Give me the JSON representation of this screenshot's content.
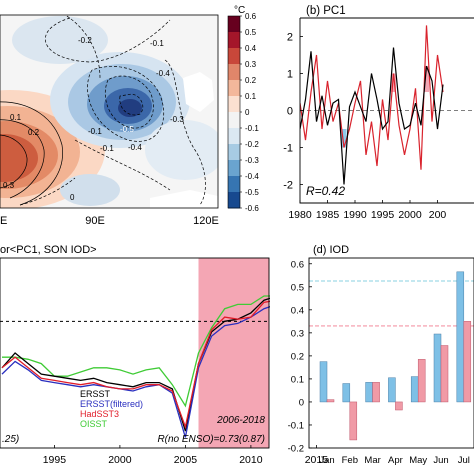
{
  "panel_a": {
    "colorbar_unit": "°C",
    "colorbar_ticks": [
      "0.6",
      "0.5",
      "0.4",
      "0.3",
      "0.2",
      "0.1",
      "0",
      "-0.1",
      "-0.2",
      "-0.3",
      "-0.4",
      "-0.5",
      "-0.6"
    ],
    "x_ticks": [
      "E",
      "90E",
      "120E"
    ],
    "contour_labels": [
      "-0.2",
      "-0.1",
      "-0.4",
      "-0.5",
      "-0.3",
      "0.1",
      "0.2",
      "0.3",
      "-0.1",
      "-0.1",
      "-0.4",
      "0"
    ]
  },
  "chart_data": [
    {
      "type": "line",
      "title": "(b) PC1",
      "x": [
        1980,
        1981,
        1982,
        1983,
        1984,
        1985,
        1986,
        1987,
        1988,
        1989,
        1990,
        1991,
        1992,
        1993,
        1994,
        1995,
        1996,
        1997,
        1998,
        1999,
        2000,
        2001,
        2002,
        2003,
        2004,
        2005,
        2006
      ],
      "series": [
        {
          "values": [
            -0.5,
            0.3,
            1.6,
            -0.3,
            0.4,
            -0.4,
            0.2,
            0.3,
            -2.0,
            0.1,
            0.5,
            0.1,
            -0.3,
            1.0,
            0.3,
            -0.5,
            -0.3,
            1.7,
            0.2,
            -0.5,
            -0.4,
            0.2,
            -0.4,
            1.2,
            0.8,
            -0.5,
            0.7
          ]
        },
        {
          "values": [
            0.2,
            -0.8,
            0.5,
            1.5,
            -0.5,
            0.8,
            -0.3,
            0.2,
            -1.0,
            -0.5,
            0.2,
            0.8,
            -1.2,
            -0.3,
            -1.5,
            0.3,
            -0.8,
            1.0,
            -0.4,
            -1.2,
            -0.5,
            0.6,
            -1.6,
            2.3,
            -0.3,
            1.5,
            0.5
          ]
        }
      ],
      "ylim": [
        -2.5,
        2.5
      ],
      "y_ticks": [
        "2",
        "1",
        "0",
        "-1",
        "-2"
      ],
      "x_ticks": [
        "1980",
        "1985",
        "1990",
        "1995",
        "2000",
        "200"
      ],
      "annotation": "R=0.42"
    },
    {
      "type": "line",
      "title": "or<PC1, SON IOD>",
      "x": [
        1991,
        1992,
        1993,
        1994,
        1995,
        1996,
        1997,
        1998,
        1999,
        2000,
        2001,
        2002,
        2003,
        2004,
        2005,
        2006,
        2007,
        2008,
        2009,
        2010,
        2011,
        2012,
        2013
      ],
      "series": [
        {
          "name": "ERSST",
          "values": [
            0.38,
            0.45,
            0.4,
            0.35,
            0.34,
            0.33,
            0.32,
            0.33,
            0.31,
            0.3,
            0.29,
            0.31,
            0.31,
            0.28,
            0.08,
            0.4,
            0.55,
            0.6,
            0.61,
            0.64,
            0.7,
            0.72,
            0.72
          ]
        },
        {
          "name": "ERSST(filtered)",
          "values": [
            0.35,
            0.41,
            0.37,
            0.32,
            0.31,
            0.3,
            0.29,
            0.3,
            0.29,
            0.28,
            0.27,
            0.29,
            0.3,
            0.26,
            0.05,
            0.38,
            0.53,
            0.58,
            0.59,
            0.62,
            0.66,
            0.68,
            0.68
          ]
        },
        {
          "name": "HadSST3",
          "values": [
            0.38,
            0.43,
            0.38,
            0.33,
            0.32,
            0.31,
            0.3,
            0.31,
            0.29,
            0.28,
            0.28,
            0.3,
            0.3,
            0.27,
            0.1,
            0.4,
            0.56,
            0.62,
            0.61,
            0.62,
            0.69,
            0.7,
            0.71
          ]
        },
        {
          "name": "OISST",
          "values": [
            0.43,
            0.43,
            0.42,
            0.4,
            0.34,
            0.34,
            0.36,
            0.38,
            0.38,
            0.37,
            0.35,
            0.37,
            0.38,
            0.3,
            0.2,
            0.45,
            0.57,
            0.66,
            0.68,
            0.68,
            0.72,
            0.72,
            0.73
          ]
        }
      ],
      "x_ticks": [
        "1995",
        "2000",
        "2005",
        "2010",
        "2015"
      ],
      "xlim": [
        1991,
        2018
      ],
      "ylim": [
        0.0,
        0.9
      ],
      "shaded_period": "2006-2018",
      "annotation_left": ".25)",
      "annotation_bottom": "R(no ENSO)=0.73(0.87)"
    },
    {
      "type": "bar",
      "title": "(d) IOD",
      "categories": [
        "Jan",
        "Feb",
        "Mar",
        "Apr",
        "May",
        "Jun",
        "Jul"
      ],
      "series": [
        {
          "values": [
            0.175,
            0.08,
            0.085,
            0.105,
            0.11,
            0.295,
            0.565
          ]
        },
        {
          "values": [
            0.01,
            -0.165,
            0.085,
            -0.035,
            0.185,
            0.245,
            0.35
          ]
        }
      ],
      "ylim": [
        -0.2,
        0.6
      ],
      "y_ticks": [
        "0.6",
        "0.5",
        "0.4",
        "0.3",
        "0.2",
        "0.1",
        "0",
        "-0.1",
        "-0.2"
      ],
      "ref_lines": [
        0.525,
        0.33
      ],
      "colors": {
        "blue": "#7ec0e6",
        "red": "#f09aa6",
        "blue_line": "#62c4d8",
        "red_line": "#f17a8c"
      }
    }
  ]
}
